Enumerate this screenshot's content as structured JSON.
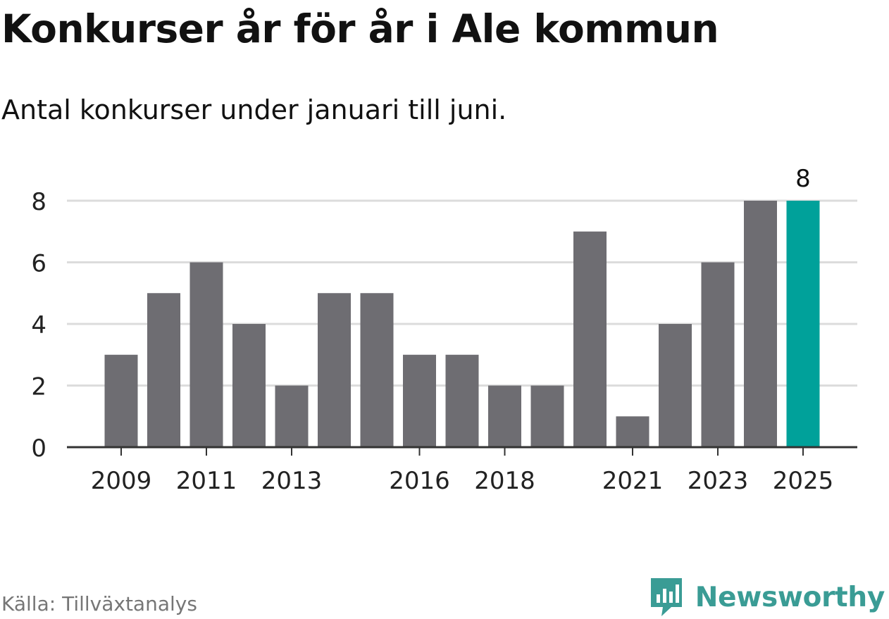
{
  "header": {
    "title": "Konkurser år för år i Ale kommun",
    "subtitle": "Antal konkurser under januari till juni."
  },
  "footer": {
    "source": "Källa: Tillväxtanalys",
    "brand": "Newsworthy",
    "brand_icon": "bar-chart-speech-bubble-icon"
  },
  "colors": {
    "bar": "#6e6d72",
    "highlight": "#00a19a",
    "grid": "#dcdcdc",
    "axis": "#333333",
    "text": "#222222",
    "brand": "#3a9c95"
  },
  "chart_data": {
    "type": "bar",
    "categories": [
      "2009",
      "2010",
      "2011",
      "2012",
      "2013",
      "2014",
      "2015",
      "2016",
      "2017",
      "2018",
      "2019",
      "2020",
      "2021",
      "2022",
      "2023",
      "2024",
      "2025"
    ],
    "values": [
      3,
      5,
      6,
      4,
      2,
      5,
      5,
      3,
      3,
      2,
      2,
      7,
      1,
      4,
      6,
      8,
      8
    ],
    "x_tick_labels": [
      "2009",
      "2011",
      "2013",
      "2016",
      "2018",
      "2021",
      "2023",
      "2025"
    ],
    "y_ticks": [
      0,
      2,
      4,
      6,
      8
    ],
    "ylim": [
      0,
      8
    ],
    "highlight_category": "2025",
    "data_labels": [
      {
        "category": "2025",
        "text": "8"
      }
    ],
    "xlabel": "",
    "ylabel": "",
    "grid": true,
    "legend": "none"
  }
}
